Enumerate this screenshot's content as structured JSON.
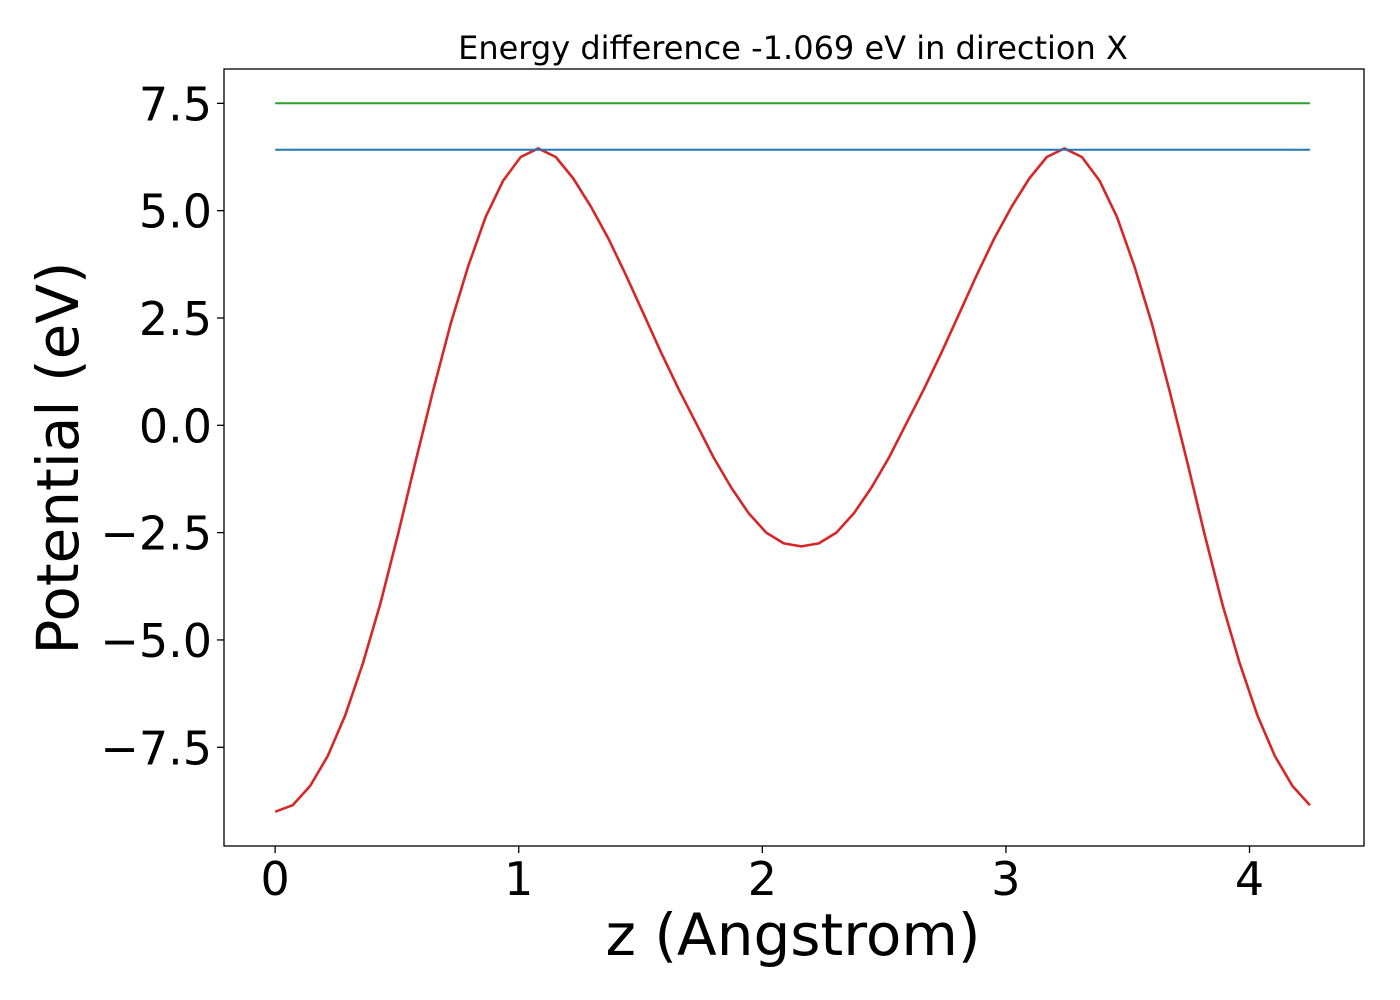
{
  "chart_data": {
    "type": "line",
    "title": "Energy difference -1.069 eV in direction X",
    "xlabel": "z (Angstrom)",
    "ylabel": "Potential (eV)",
    "xlim": [
      -0.21,
      4.47
    ],
    "ylim": [
      -9.8,
      8.3
    ],
    "grid": false,
    "x_ticks": [
      0,
      1,
      2,
      3,
      4
    ],
    "x_tick_labels": [
      "0",
      "1",
      "2",
      "3",
      "4"
    ],
    "y_ticks": [
      7.5,
      5.0,
      2.5,
      0.0,
      -2.5,
      -5.0,
      -7.5
    ],
    "y_tick_labels": [
      "7.5",
      "5.0",
      "2.5",
      "0.0",
      "−2.5",
      "−5.0",
      "−7.5"
    ],
    "series": [
      {
        "color": "#d62728",
        "x": [
          0.0,
          0.072,
          0.144,
          0.216,
          0.288,
          0.36,
          0.432,
          0.504,
          0.576,
          0.648,
          0.72,
          0.792,
          0.864,
          0.936,
          1.008,
          1.08,
          1.152,
          1.224,
          1.296,
          1.368,
          1.44,
          1.512,
          1.584,
          1.656,
          1.728,
          1.8,
          1.872,
          1.944,
          2.016,
          2.088,
          2.16,
          2.232,
          2.304,
          2.376,
          2.448,
          2.52,
          2.592,
          2.664,
          2.736,
          2.808,
          2.88,
          2.952,
          3.024,
          3.096,
          3.168,
          3.24,
          3.312,
          3.384,
          3.456,
          3.528,
          3.6,
          3.672,
          3.744,
          3.816,
          3.888,
          3.96,
          4.032,
          4.104,
          4.176,
          4.248
        ],
        "y": [
          -9.0,
          -8.85,
          -8.4,
          -7.7,
          -6.75,
          -5.55,
          -4.15,
          -2.55,
          -0.85,
          0.8,
          2.35,
          3.7,
          4.85,
          5.7,
          6.25,
          6.45,
          6.25,
          5.75,
          5.1,
          4.35,
          3.5,
          2.6,
          1.7,
          0.85,
          0.05,
          -0.75,
          -1.45,
          -2.05,
          -2.5,
          -2.75,
          -2.82,
          -2.75,
          -2.5,
          -2.05,
          -1.45,
          -0.75,
          0.05,
          0.85,
          1.7,
          2.6,
          3.5,
          4.35,
          5.1,
          5.75,
          6.25,
          6.45,
          6.25,
          5.7,
          4.85,
          3.7,
          2.35,
          0.8,
          -0.85,
          -2.55,
          -4.15,
          -5.55,
          -6.75,
          -7.7,
          -8.4,
          -8.85
        ]
      },
      {
        "color": "#1f77b4",
        "x": [
          0.0,
          4.248
        ],
        "y": [
          6.42,
          6.42
        ]
      },
      {
        "color": "#2ca02c",
        "x": [
          0.0,
          4.248
        ],
        "y": [
          7.5,
          7.5
        ]
      }
    ]
  }
}
